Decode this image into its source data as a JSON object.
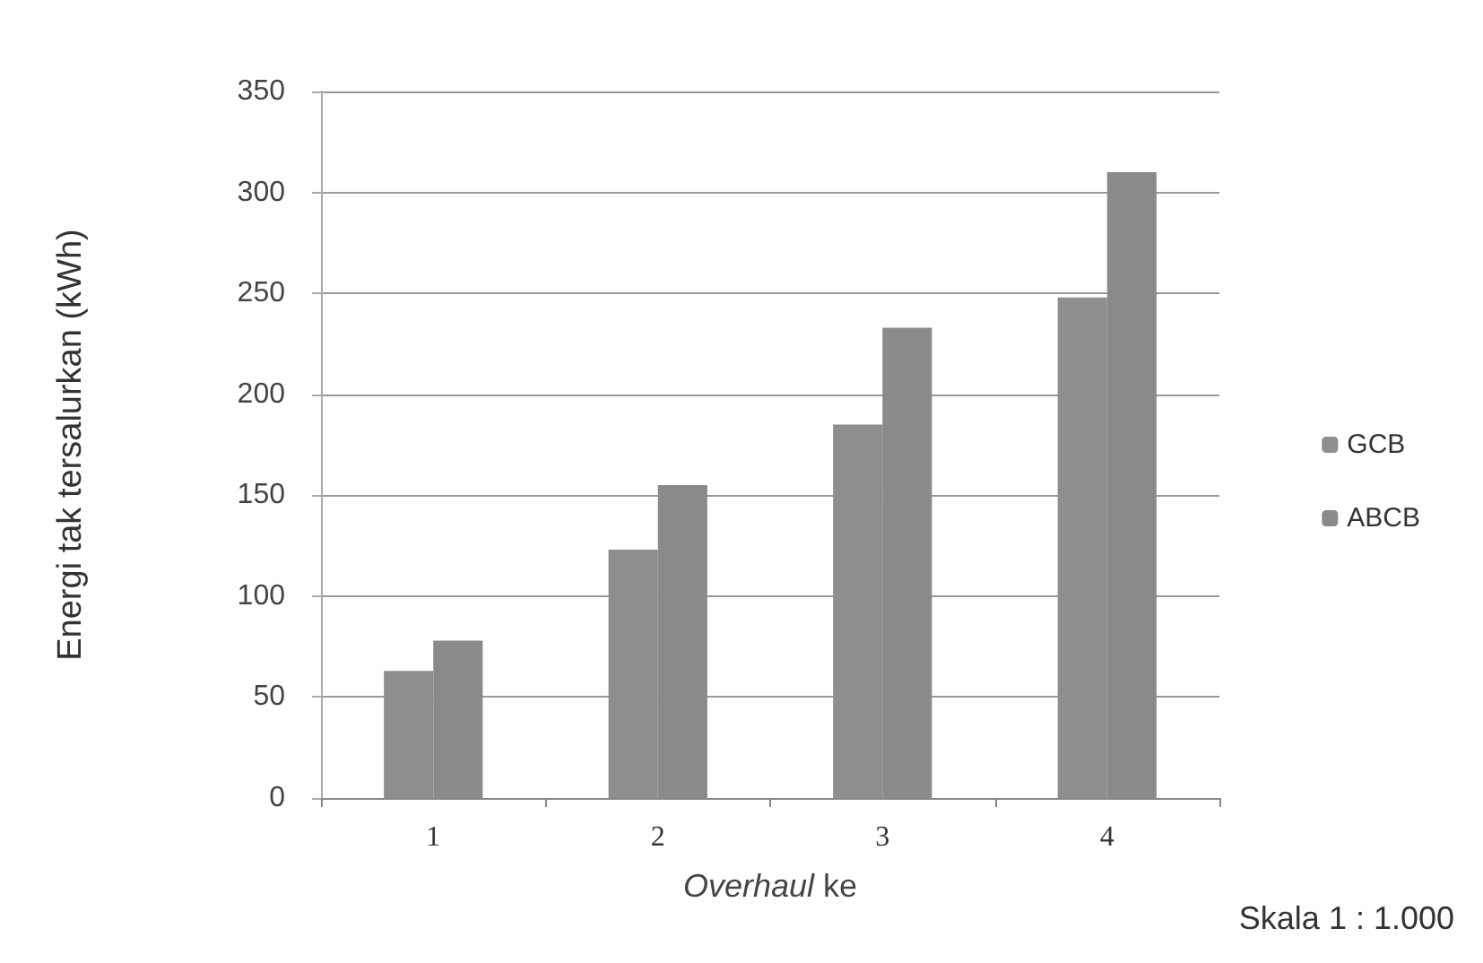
{
  "chart_data": {
    "type": "bar",
    "categories": [
      "1",
      "2",
      "3",
      "4"
    ],
    "series": [
      {
        "name": "GCB",
        "color": "#8e8e8e",
        "values": [
          63,
          123,
          185,
          248
        ]
      },
      {
        "name": "ABCB",
        "color": "#8a8a8a",
        "values": [
          78,
          155,
          233,
          310
        ]
      }
    ],
    "xlabel": "Overhaul ke",
    "ylabel": "Energi tak tersalurkan (kWh)",
    "ylim": [
      0,
      350
    ],
    "yticks": [
      0,
      50,
      100,
      150,
      200,
      250,
      300,
      350
    ],
    "grid": "y",
    "legend": "right",
    "annotations": [
      "Skala 1 : 1.000"
    ]
  }
}
